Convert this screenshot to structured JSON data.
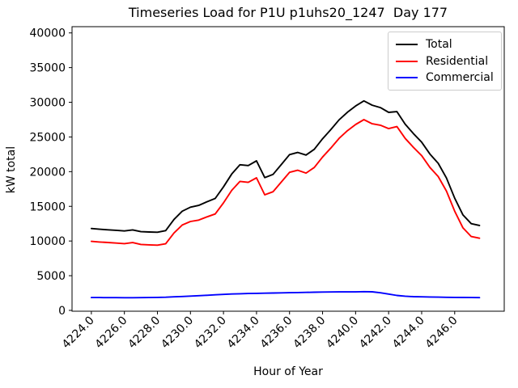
{
  "chart_data": {
    "type": "line",
    "title": "Timeseries Load for P1U p1uhs20_1247  Day 177",
    "xlabel": "Hour of Year",
    "ylabel": "kW total",
    "grid": false,
    "legend_position": "upper right",
    "xlim": [
      4222.8,
      4249.0
    ],
    "ylim": [
      0,
      40000
    ],
    "x_ticks": [
      4224,
      4226,
      4228,
      4230,
      4232,
      4234,
      4236,
      4238,
      4240,
      4242,
      4244,
      4246
    ],
    "x_tick_labels": [
      "4224.0",
      "4226.0",
      "4228.0",
      "4230.0",
      "4232.0",
      "4234.0",
      "4236.0",
      "4238.0",
      "4240.0",
      "4242.0",
      "4244.0",
      "4246.0"
    ],
    "y_ticks": [
      0,
      5000,
      10000,
      15000,
      20000,
      25000,
      30000,
      35000,
      40000
    ],
    "y_tick_labels": [
      "0",
      "5000",
      "10000",
      "15000",
      "20000",
      "25000",
      "30000",
      "35000",
      "40000"
    ],
    "x": [
      4224.0,
      4224.5,
      4225.0,
      4225.5,
      4226.0,
      4226.5,
      4227.0,
      4227.5,
      4228.0,
      4228.5,
      4229.0,
      4229.5,
      4230.0,
      4230.5,
      4231.0,
      4231.5,
      4232.0,
      4232.5,
      4233.0,
      4233.5,
      4234.0,
      4234.5,
      4235.0,
      4235.5,
      4236.0,
      4236.5,
      4237.0,
      4237.5,
      4238.0,
      4238.5,
      4239.0,
      4239.5,
      4240.0,
      4240.5,
      4241.0,
      4241.5,
      4242.0,
      4242.5,
      4243.0,
      4243.5,
      4244.0,
      4244.5,
      4245.0,
      4245.5,
      4246.0,
      4246.5,
      4247.0,
      4247.5
    ],
    "series": [
      {
        "name": "Total",
        "color": "#000000",
        "values": [
          11800,
          11700,
          11620,
          11540,
          11450,
          11600,
          11350,
          11300,
          11270,
          11500,
          13100,
          14300,
          14880,
          15130,
          15660,
          16140,
          17800,
          19660,
          21000,
          20880,
          21560,
          19140,
          19600,
          21020,
          22450,
          22770,
          22400,
          23220,
          24740,
          26050,
          27460,
          28560,
          29470,
          30200,
          29580,
          29240,
          28550,
          28650,
          26850,
          25480,
          24250,
          22530,
          21210,
          19090,
          16170,
          13760,
          12500,
          12240
        ]
      },
      {
        "name": "Residential",
        "color": "#ff0000",
        "values": [
          9950,
          9850,
          9780,
          9700,
          9620,
          9770,
          9510,
          9450,
          9400,
          9600,
          11150,
          12300,
          12820,
          13010,
          13480,
          13900,
          15500,
          17300,
          18600,
          18450,
          19110,
          16660,
          17100,
          18500,
          19900,
          20200,
          19800,
          20600,
          22100,
          23400,
          24800,
          25900,
          26800,
          27500,
          26900,
          26700,
          26200,
          26500,
          24800,
          23500,
          22300,
          20600,
          19300,
          17200,
          14300,
          11900,
          10650,
          10400
        ]
      },
      {
        "name": "Commercial",
        "color": "#0000ff",
        "values": [
          1850,
          1850,
          1840,
          1840,
          1830,
          1830,
          1840,
          1850,
          1870,
          1900,
          1950,
          2000,
          2060,
          2120,
          2180,
          2240,
          2300,
          2360,
          2400,
          2430,
          2450,
          2480,
          2500,
          2520,
          2550,
          2570,
          2600,
          2620,
          2640,
          2650,
          2660,
          2660,
          2670,
          2700,
          2680,
          2540,
          2350,
          2150,
          2050,
          1980,
          1950,
          1930,
          1910,
          1890,
          1870,
          1860,
          1850,
          1840
        ]
      }
    ]
  }
}
